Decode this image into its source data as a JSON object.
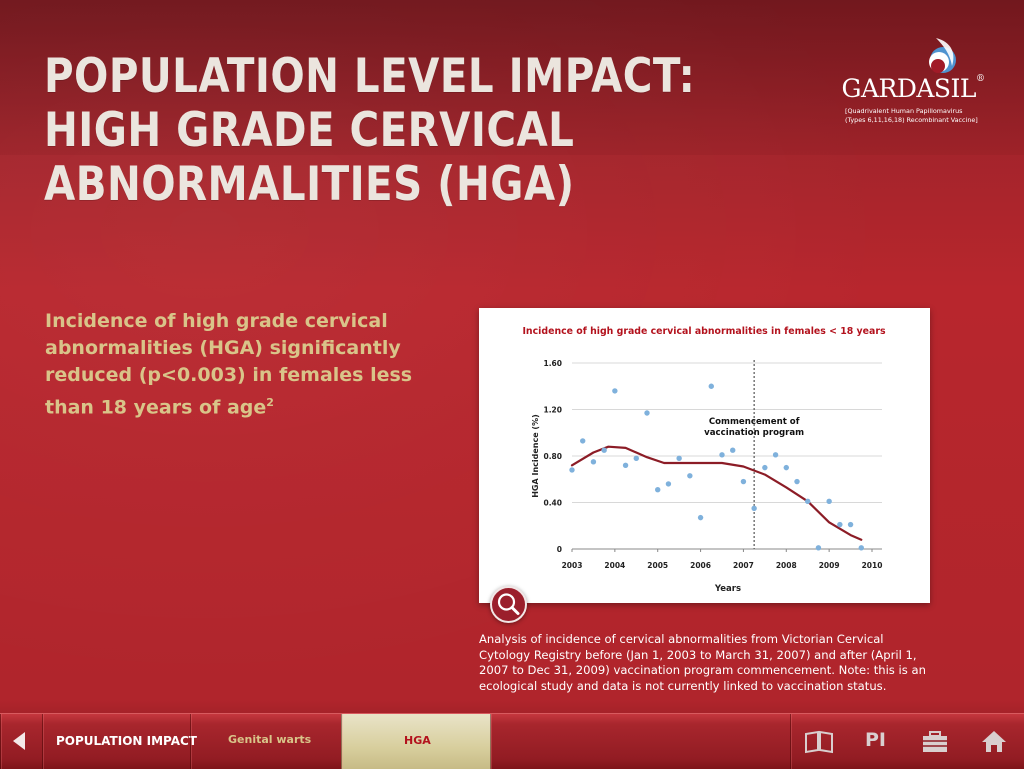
{
  "page": {
    "title_lines": [
      "POPULATION LEVEL IMPACT:",
      "HIGH GRADE CERVICAL",
      "ABNORMALITIES (HGA)"
    ],
    "subheading": "Incidence of high grade cervical abnormalities (HGA) significantly reduced (p<0.003) in females less than 18 years of age",
    "subheading_ref": "2",
    "caption": "Analysis of incidence of cervical abnormalities from Victorian Cervical Cytology Registry before (Jan 1, 2003 to March 31, 2007) and after (April 1, 2007 to Dec 31, 2009) vaccination program commencement. Note: this is an ecological study and data is not currently linked to vaccination status."
  },
  "brand": {
    "name": "GARDASIL",
    "registered_mark": "®",
    "subtitle_line1": "[Quadrivalent Human Papillomavirus",
    "subtitle_line2": "(Types 6,11,16,18) Recombinant Vaccine]"
  },
  "chart_data": {
    "type": "scatter",
    "title": "Incidence of high grade cervical abnormalities in females < 18 years",
    "xlabel": "Years",
    "ylabel": "HGA Incidence (%)",
    "xlim": [
      2003,
      2010
    ],
    "ylim": [
      0,
      1.6
    ],
    "xticks": [
      "2003",
      "2004",
      "2005",
      "2006",
      "2007",
      "2008",
      "2009",
      "2010"
    ],
    "yticks": [
      "0",
      "0.40",
      "0.80",
      "1.20",
      "1.60"
    ],
    "grid": "horizontal",
    "annotation": {
      "line1": "Commencement of",
      "line2": "vaccination program",
      "x": 2007.25
    },
    "points": [
      {
        "x": 2003.0,
        "y": 0.68
      },
      {
        "x": 2003.25,
        "y": 0.93
      },
      {
        "x": 2003.5,
        "y": 0.75
      },
      {
        "x": 2003.75,
        "y": 0.85
      },
      {
        "x": 2004.0,
        "y": 1.36
      },
      {
        "x": 2004.25,
        "y": 0.72
      },
      {
        "x": 2004.5,
        "y": 0.78
      },
      {
        "x": 2004.75,
        "y": 1.17
      },
      {
        "x": 2005.0,
        "y": 0.51
      },
      {
        "x": 2005.25,
        "y": 0.56
      },
      {
        "x": 2005.5,
        "y": 0.78
      },
      {
        "x": 2005.75,
        "y": 0.63
      },
      {
        "x": 2006.0,
        "y": 0.27
      },
      {
        "x": 2006.25,
        "y": 1.4
      },
      {
        "x": 2006.5,
        "y": 0.81
      },
      {
        "x": 2006.75,
        "y": 0.85
      },
      {
        "x": 2007.0,
        "y": 0.58
      },
      {
        "x": 2007.25,
        "y": 0.35
      },
      {
        "x": 2007.5,
        "y": 0.7
      },
      {
        "x": 2007.75,
        "y": 0.81
      },
      {
        "x": 2008.0,
        "y": 0.7
      },
      {
        "x": 2008.25,
        "y": 0.58
      },
      {
        "x": 2008.5,
        "y": 0.41
      },
      {
        "x": 2008.75,
        "y": 0.01
      },
      {
        "x": 2009.0,
        "y": 0.41
      },
      {
        "x": 2009.25,
        "y": 0.21
      },
      {
        "x": 2009.5,
        "y": 0.21
      },
      {
        "x": 2009.75,
        "y": 0.01
      }
    ],
    "trend": [
      {
        "x": 2003.0,
        "y": 0.72
      },
      {
        "x": 2003.5,
        "y": 0.83
      },
      {
        "x": 2003.85,
        "y": 0.88
      },
      {
        "x": 2004.25,
        "y": 0.87
      },
      {
        "x": 2004.75,
        "y": 0.79
      },
      {
        "x": 2005.15,
        "y": 0.74
      },
      {
        "x": 2005.75,
        "y": 0.74
      },
      {
        "x": 2006.5,
        "y": 0.74
      },
      {
        "x": 2007.0,
        "y": 0.71
      },
      {
        "x": 2007.5,
        "y": 0.64
      },
      {
        "x": 2008.0,
        "y": 0.53
      },
      {
        "x": 2008.5,
        "y": 0.41
      },
      {
        "x": 2009.0,
        "y": 0.23
      },
      {
        "x": 2009.5,
        "y": 0.12
      },
      {
        "x": 2009.75,
        "y": 0.08
      }
    ],
    "colors": {
      "title": "#b3121d",
      "points": "#7fb1dc",
      "trend": "#8c1c26",
      "grid": "#d8d8d8"
    }
  },
  "navbar": {
    "back_icon": "back-arrow-icon",
    "population_impact": "POPULATION IMPACT",
    "genital_warts": "Genital warts",
    "hga": "HGA",
    "icons": [
      "book-icon",
      "pi-icon",
      "briefcase-icon",
      "home-icon"
    ],
    "pi_label": "PI"
  },
  "colors": {
    "background": "#b0252c",
    "subheading": "#d9c489",
    "title": "#ebe5de",
    "nav_active": "#d8cf9e"
  }
}
